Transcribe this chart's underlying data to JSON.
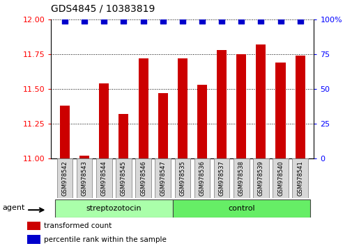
{
  "title": "GDS4845 / 10383819",
  "samples": [
    "GSM978542",
    "GSM978543",
    "GSM978544",
    "GSM978545",
    "GSM978546",
    "GSM978547",
    "GSM978535",
    "GSM978536",
    "GSM978537",
    "GSM978538",
    "GSM978539",
    "GSM978540",
    "GSM978541"
  ],
  "groups": [
    "streptozotocin",
    "streptozotocin",
    "streptozotocin",
    "streptozotocin",
    "streptozotocin",
    "streptozotocin",
    "control",
    "control",
    "control",
    "control",
    "control",
    "control",
    "control"
  ],
  "transformed_count": [
    11.38,
    11.02,
    11.54,
    11.32,
    11.72,
    11.47,
    11.72,
    11.53,
    11.78,
    11.75,
    11.82,
    11.69,
    11.74
  ],
  "percentile_rank": [
    99,
    99,
    99,
    99,
    99,
    99,
    99,
    99,
    99,
    99,
    99,
    99,
    99
  ],
  "ylim_left": [
    11.0,
    12.0
  ],
  "ylim_right": [
    0,
    100
  ],
  "yticks_left": [
    11.0,
    11.25,
    11.5,
    11.75,
    12.0
  ],
  "yticks_right": [
    0,
    25,
    50,
    75,
    100
  ],
  "bar_color": "#cc0000",
  "dot_color": "#0000cc",
  "streptozotocin_color": "#aaffaa",
  "control_color": "#66ee66",
  "agent_label": "agent",
  "legend_bar": "transformed count",
  "legend_dot": "percentile rank within the sample",
  "bar_width": 0.5,
  "dot_size": 30,
  "strep_count": 6,
  "ctrl_count": 7
}
